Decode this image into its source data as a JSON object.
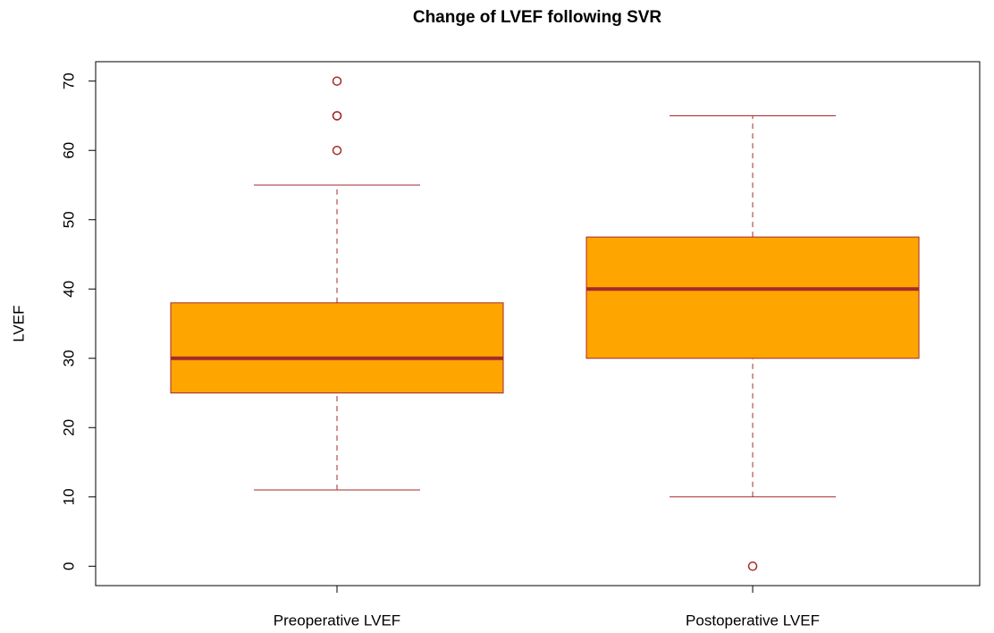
{
  "chart_data": {
    "type": "box",
    "title": "Change of LVEF following SVR",
    "y_label": "LVEF",
    "categories": [
      "Preoperative LVEF",
      "Postoperative LVEF"
    ],
    "boxes": [
      {
        "whislo": 11,
        "q1": 25,
        "med": 30,
        "q3": 38,
        "whishi": 55,
        "outliers": [
          60,
          65,
          65,
          70
        ]
      },
      {
        "whislo": 10,
        "q1": 30,
        "med": 40,
        "q3": 47.5,
        "whishi": 65,
        "outliers": [
          0
        ]
      }
    ],
    "color": "#ffa500",
    "border_color": "#a52a2a",
    "ylim": [
      -2.8,
      72.8
    ],
    "yticks": [
      0,
      10,
      20,
      30,
      40,
      50,
      60,
      70
    ]
  }
}
